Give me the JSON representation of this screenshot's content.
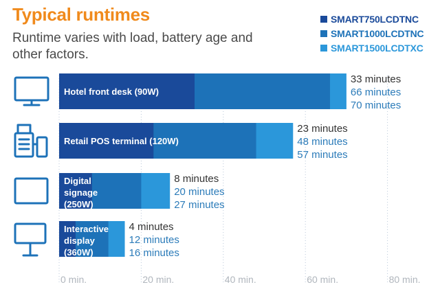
{
  "chart_data": {
    "type": "bar",
    "orientation": "horizontal",
    "overlapping": true,
    "title": "Typical runtimes",
    "subtitle": "Runtime varies with load, battery age and other factors.",
    "categories": [
      "Hotel front desk (90W)",
      "Retail POS terminal (120W)",
      "Digital signage (250W)",
      "Interactive display (360W)"
    ],
    "category_icons": [
      "monitor-icon",
      "pos-terminal-icon",
      "signage-icon",
      "kiosk-icon"
    ],
    "series": [
      {
        "name": "SMART750LCDTNC",
        "values": [
          33,
          23,
          8,
          4
        ],
        "color": "#1a4a9a"
      },
      {
        "name": "SMART1000LCDTNC",
        "values": [
          66,
          48,
          20,
          12
        ],
        "color": "#1d72b8"
      },
      {
        "name": "SMART1500LCDTXC",
        "values": [
          70,
          57,
          27,
          16
        ],
        "color": "#2b97da"
      }
    ],
    "value_suffix": " minutes",
    "label_colors": [
      "#333333",
      "#2b7bb9",
      "#2b7bb9"
    ],
    "x_ticks": [
      0,
      20,
      40,
      60,
      80
    ],
    "x_tick_labels": [
      "0 min.",
      "20 min.",
      "40 min.",
      "60 min.",
      "80 min."
    ],
    "xlim": [
      0,
      80
    ],
    "grid": "vertical dotted",
    "legend_position": "top-right"
  }
}
